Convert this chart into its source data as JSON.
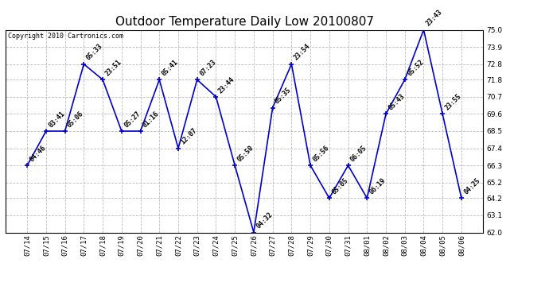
{
  "title": "Outdoor Temperature Daily Low 20100807",
  "copyright": "Copyright 2010 Cartronics.com",
  "xlabels": [
    "07/14",
    "07/15",
    "07/16",
    "07/17",
    "07/18",
    "07/19",
    "07/20",
    "07/21",
    "07/22",
    "07/23",
    "07/24",
    "07/25",
    "07/26",
    "07/27",
    "07/28",
    "07/29",
    "07/30",
    "07/31",
    "08/01",
    "08/02",
    "08/03",
    "08/04",
    "08/05",
    "08/06"
  ],
  "yvalues": [
    66.3,
    68.5,
    68.5,
    72.8,
    71.8,
    68.5,
    68.5,
    71.8,
    67.4,
    71.8,
    70.7,
    66.3,
    62.0,
    70.0,
    72.8,
    66.3,
    64.2,
    66.3,
    64.2,
    69.6,
    71.8,
    75.0,
    69.6,
    64.2
  ],
  "annotations": [
    "04:46",
    "03:41",
    "05:06",
    "05:33",
    "23:51",
    "05:27",
    "01:16",
    "05:41",
    "12:07",
    "07:23",
    "23:44",
    "05:50",
    "04:32",
    "05:35",
    "23:54",
    "05:56",
    "05:05",
    "06:05",
    "06:19",
    "05:43",
    "05:52",
    "23:43",
    "23:55",
    "04:25"
  ],
  "ylim": [
    62.0,
    75.0
  ],
  "yticks": [
    62.0,
    63.1,
    64.2,
    65.2,
    66.3,
    67.4,
    68.5,
    69.6,
    70.7,
    71.8,
    72.8,
    73.9,
    75.0
  ],
  "line_color": "#0000cc",
  "marker_color": "#0000cc",
  "background_color": "#ffffff",
  "grid_color": "#bbbbbb",
  "title_fontsize": 11,
  "annotation_fontsize": 6,
  "tick_fontsize": 6.5,
  "copyright_fontsize": 6
}
